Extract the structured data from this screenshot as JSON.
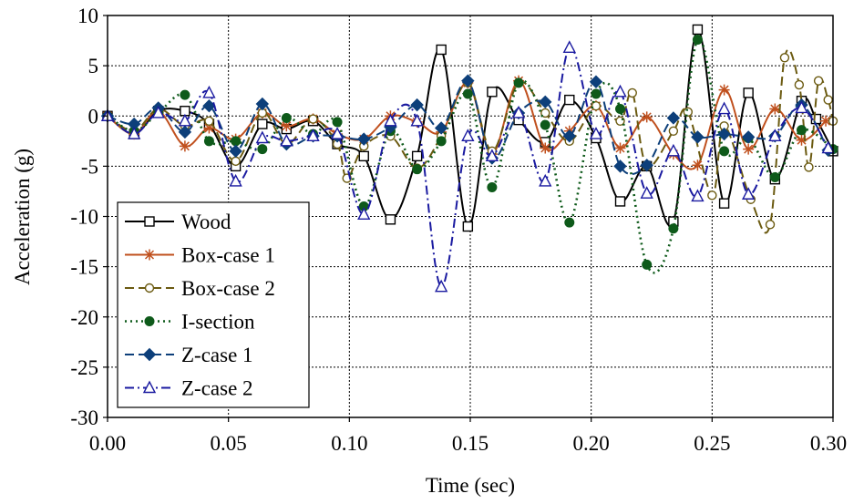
{
  "chart_data": {
    "type": "line",
    "xlabel": "Time (sec)",
    "ylabel": "Acceleration (g)",
    "xlim": [
      0.0,
      0.3
    ],
    "ylim": [
      -30,
      10
    ],
    "x_ticks": [
      "0.00",
      "0.05",
      "0.10",
      "0.15",
      "0.20",
      "0.25",
      "0.30"
    ],
    "y_ticks": [
      "10",
      "5",
      "0",
      "-5",
      "-10",
      "-15",
      "-20",
      "-25",
      "-30"
    ],
    "grid": true,
    "legend_position": "bottom-left",
    "series": [
      {
        "name": "Wood",
        "color": "#000000",
        "dash": "solid",
        "marker": "square-open",
        "points": [
          [
            0.0,
            0.0
          ],
          [
            0.011,
            -1.8
          ],
          [
            0.021,
            0.5
          ],
          [
            0.032,
            0.5
          ],
          [
            0.042,
            -0.8
          ],
          [
            0.053,
            -5.0
          ],
          [
            0.064,
            -0.8
          ],
          [
            0.074,
            -1.3
          ],
          [
            0.085,
            -0.5
          ],
          [
            0.095,
            -2.8
          ],
          [
            0.106,
            -4.0
          ],
          [
            0.117,
            -10.3
          ],
          [
            0.128,
            -4.0
          ],
          [
            0.138,
            6.6
          ],
          [
            0.149,
            -11.0
          ],
          [
            0.159,
            2.4
          ],
          [
            0.17,
            -0.4
          ],
          [
            0.181,
            -2.6
          ],
          [
            0.191,
            1.6
          ],
          [
            0.202,
            -2.2
          ],
          [
            0.212,
            -8.5
          ],
          [
            0.223,
            -5.0
          ],
          [
            0.234,
            -10.5
          ],
          [
            0.244,
            8.6
          ],
          [
            0.255,
            -8.7
          ],
          [
            0.265,
            2.3
          ],
          [
            0.276,
            -6.3
          ],
          [
            0.287,
            1.5
          ],
          [
            0.293,
            -0.3
          ],
          [
            0.3,
            -3.5
          ]
        ]
      },
      {
        "name": "Box-case 1",
        "color": "#c0501e",
        "dash": "solid",
        "marker": "star",
        "points": [
          [
            0.0,
            0.0
          ],
          [
            0.011,
            -1.8
          ],
          [
            0.021,
            0.5
          ],
          [
            0.032,
            -3.0
          ],
          [
            0.042,
            -1.2
          ],
          [
            0.053,
            -2.3
          ],
          [
            0.064,
            0.3
          ],
          [
            0.074,
            -1.0
          ],
          [
            0.085,
            -0.3
          ],
          [
            0.095,
            -1.8
          ],
          [
            0.106,
            -2.3
          ],
          [
            0.117,
            0.0
          ],
          [
            0.128,
            -0.6
          ],
          [
            0.138,
            -1.6
          ],
          [
            0.149,
            3.3
          ],
          [
            0.159,
            -3.8
          ],
          [
            0.17,
            3.5
          ],
          [
            0.181,
            -3.2
          ],
          [
            0.191,
            -1.5
          ],
          [
            0.202,
            1.0
          ],
          [
            0.212,
            -3.2
          ],
          [
            0.223,
            -0.1
          ],
          [
            0.234,
            -3.8
          ],
          [
            0.244,
            -4.9
          ],
          [
            0.255,
            2.6
          ],
          [
            0.265,
            -3.3
          ],
          [
            0.276,
            0.7
          ],
          [
            0.287,
            -2.4
          ],
          [
            0.297,
            -0.5
          ]
        ]
      },
      {
        "name": "Box-case 2",
        "color": "#6b5a10",
        "dash": "long-dash",
        "marker": "circle-open",
        "points": [
          [
            0.0,
            0.0
          ],
          [
            0.011,
            -1.5
          ],
          [
            0.021,
            0.7
          ],
          [
            0.032,
            -1.0
          ],
          [
            0.042,
            -0.5
          ],
          [
            0.053,
            -4.5
          ],
          [
            0.064,
            0.3
          ],
          [
            0.074,
            -2.8
          ],
          [
            0.085,
            -0.3
          ],
          [
            0.095,
            -2.8
          ],
          [
            0.099,
            -6.2
          ],
          [
            0.106,
            -3.0
          ],
          [
            0.117,
            -2.0
          ],
          [
            0.128,
            -5.2
          ],
          [
            0.138,
            -2.0
          ],
          [
            0.149,
            3.3
          ],
          [
            0.159,
            -3.5
          ],
          [
            0.17,
            3.3
          ],
          [
            0.181,
            0.3
          ],
          [
            0.191,
            -2.5
          ],
          [
            0.202,
            1.0
          ],
          [
            0.212,
            -0.5
          ],
          [
            0.217,
            2.3
          ],
          [
            0.223,
            -5.0
          ],
          [
            0.234,
            -1.5
          ],
          [
            0.24,
            0.4
          ],
          [
            0.25,
            -7.9
          ],
          [
            0.255,
            -1.0
          ],
          [
            0.266,
            -8.3
          ],
          [
            0.274,
            -10.8
          ],
          [
            0.28,
            5.8
          ],
          [
            0.286,
            3.1
          ],
          [
            0.29,
            -5.1
          ],
          [
            0.294,
            3.5
          ],
          [
            0.298,
            1.6
          ],
          [
            0.3,
            -0.5
          ]
        ]
      },
      {
        "name": "I-section",
        "color": "#0e5a1a",
        "dash": "dotted",
        "marker": "circle-filled",
        "points": [
          [
            0.0,
            0.0
          ],
          [
            0.011,
            -1.5
          ],
          [
            0.021,
            0.3
          ],
          [
            0.032,
            2.1
          ],
          [
            0.042,
            -2.5
          ],
          [
            0.053,
            -2.5
          ],
          [
            0.064,
            -3.3
          ],
          [
            0.074,
            -0.2
          ],
          [
            0.085,
            -1.8
          ],
          [
            0.095,
            -0.6
          ],
          [
            0.106,
            -9.0
          ],
          [
            0.117,
            -1.5
          ],
          [
            0.128,
            -5.3
          ],
          [
            0.138,
            -2.5
          ],
          [
            0.149,
            2.2
          ],
          [
            0.159,
            -7.1
          ],
          [
            0.17,
            3.3
          ],
          [
            0.181,
            -0.9
          ],
          [
            0.191,
            -10.6
          ],
          [
            0.202,
            2.2
          ],
          [
            0.212,
            0.7
          ],
          [
            0.223,
            -14.8
          ],
          [
            0.234,
            -11.2
          ],
          [
            0.244,
            7.6
          ],
          [
            0.255,
            -3.5
          ],
          [
            0.265,
            -2.2
          ],
          [
            0.276,
            -6.1
          ],
          [
            0.287,
            -1.4
          ],
          [
            0.3,
            -3.3
          ]
        ]
      },
      {
        "name": "Z-case 1",
        "color": "#0d3f7a",
        "dash": "long-dash",
        "marker": "diamond-filled",
        "points": [
          [
            0.0,
            0.0
          ],
          [
            0.011,
            -0.8
          ],
          [
            0.021,
            0.8
          ],
          [
            0.032,
            -1.6
          ],
          [
            0.042,
            1.0
          ],
          [
            0.053,
            -3.5
          ],
          [
            0.064,
            1.2
          ],
          [
            0.074,
            -2.8
          ],
          [
            0.085,
            -2.0
          ],
          [
            0.095,
            -2.0
          ],
          [
            0.106,
            -2.3
          ],
          [
            0.117,
            -1.1
          ],
          [
            0.128,
            1.1
          ],
          [
            0.138,
            -1.2
          ],
          [
            0.149,
            3.5
          ],
          [
            0.159,
            -4.2
          ],
          [
            0.17,
            0.3
          ],
          [
            0.181,
            1.4
          ],
          [
            0.191,
            -2.0
          ],
          [
            0.202,
            3.4
          ],
          [
            0.212,
            -5.0
          ],
          [
            0.223,
            -4.9
          ],
          [
            0.234,
            -0.2
          ],
          [
            0.244,
            -2.1
          ],
          [
            0.255,
            -1.8
          ],
          [
            0.265,
            -2.1
          ],
          [
            0.276,
            -2.0
          ],
          [
            0.287,
            1.1
          ],
          [
            0.298,
            -3.4
          ]
        ]
      },
      {
        "name": "Z-case 2",
        "color": "#1a1aa0",
        "dash": "dash-dot",
        "marker": "triangle-open",
        "points": [
          [
            0.0,
            0.0
          ],
          [
            0.011,
            -1.8
          ],
          [
            0.021,
            0.3
          ],
          [
            0.032,
            -0.5
          ],
          [
            0.042,
            2.3
          ],
          [
            0.053,
            -6.5
          ],
          [
            0.064,
            -2.2
          ],
          [
            0.074,
            -2.5
          ],
          [
            0.085,
            -2.0
          ],
          [
            0.095,
            -1.8
          ],
          [
            0.106,
            -9.8
          ],
          [
            0.117,
            -0.5
          ],
          [
            0.128,
            -0.5
          ],
          [
            0.138,
            -17.0
          ],
          [
            0.149,
            -2.0
          ],
          [
            0.159,
            -4.0
          ],
          [
            0.17,
            0.3
          ],
          [
            0.181,
            -6.5
          ],
          [
            0.191,
            6.8
          ],
          [
            0.202,
            -1.8
          ],
          [
            0.212,
            2.4
          ],
          [
            0.223,
            -7.7
          ],
          [
            0.234,
            -3.5
          ],
          [
            0.244,
            -8.0
          ],
          [
            0.255,
            0.7
          ],
          [
            0.265,
            -7.8
          ],
          [
            0.276,
            -2.0
          ],
          [
            0.287,
            0.8
          ],
          [
            0.298,
            -3.2
          ]
        ]
      }
    ]
  }
}
